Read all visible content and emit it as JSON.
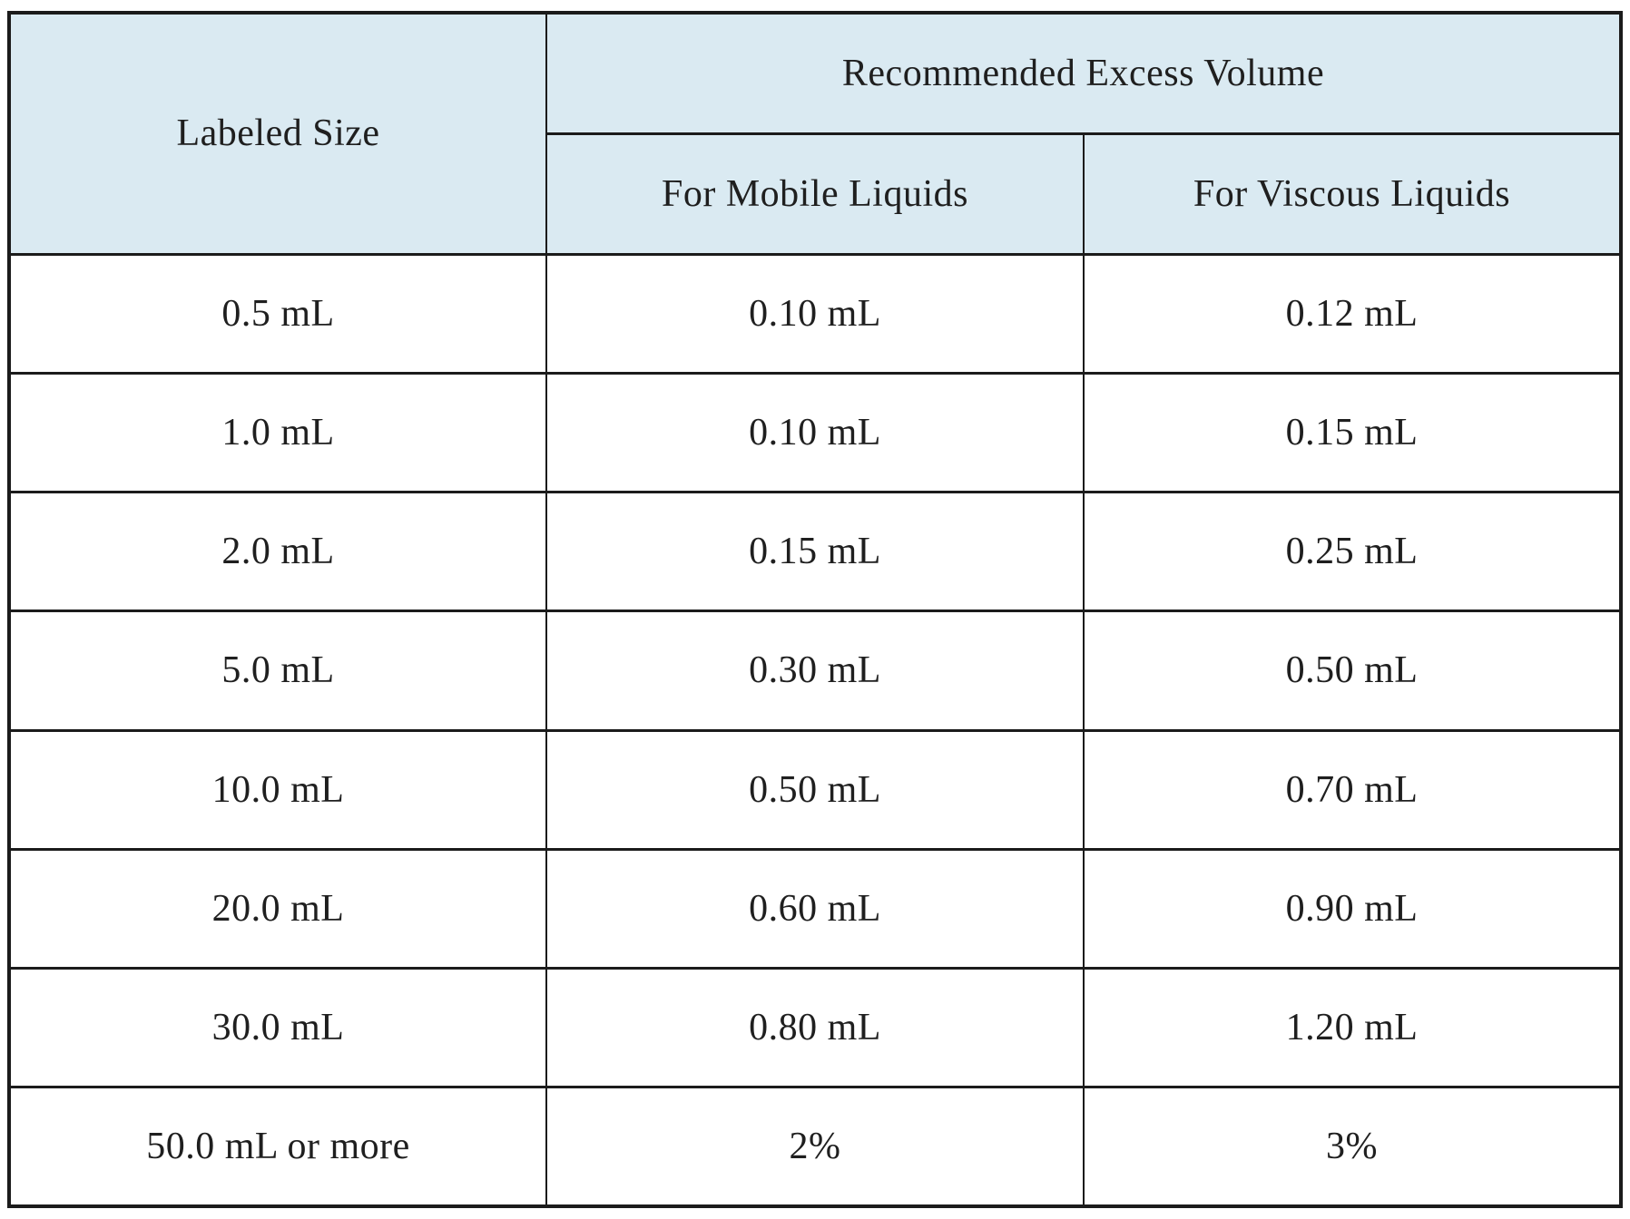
{
  "table": {
    "header": {
      "labeled_size": "Labeled Size",
      "group_title": "Recommended Excess Volume",
      "mobile_col": "For Mobile Liquids",
      "viscous_col": "For Viscous Liquids"
    },
    "rows": [
      {
        "size": "0.5 mL",
        "mobile": "0.10 mL",
        "viscous": "0.12 mL"
      },
      {
        "size": "1.0 mL",
        "mobile": "0.10 mL",
        "viscous": "0.15 mL"
      },
      {
        "size": "2.0 mL",
        "mobile": "0.15 mL",
        "viscous": "0.25 mL"
      },
      {
        "size": "5.0 mL",
        "mobile": "0.30 mL",
        "viscous": "0.50 mL"
      },
      {
        "size": "10.0 mL",
        "mobile": "0.50 mL",
        "viscous": "0.70 mL"
      },
      {
        "size": "20.0 mL",
        "mobile": "0.60 mL",
        "viscous": "0.90 mL"
      },
      {
        "size": "30.0 mL",
        "mobile": "0.80 mL",
        "viscous": "1.20 mL"
      },
      {
        "size": "50.0 mL or more",
        "mobile": "2%",
        "viscous": "3%"
      }
    ],
    "colors": {
      "header_bg": "#daeaf2",
      "border": "#1b1b1b",
      "text": "#1f1f1f"
    }
  },
  "chart_data": {
    "type": "table",
    "title": "",
    "columns": [
      "Labeled Size",
      "For Mobile Liquids",
      "For Viscous Liquids"
    ],
    "column_group": {
      "label": "Recommended Excess Volume",
      "spans": [
        "For Mobile Liquids",
        "For Viscous Liquids"
      ]
    },
    "rows": [
      [
        "0.5 mL",
        "0.10 mL",
        "0.12 mL"
      ],
      [
        "1.0 mL",
        "0.10 mL",
        "0.15 mL"
      ],
      [
        "2.0 mL",
        "0.15 mL",
        "0.25 mL"
      ],
      [
        "5.0 mL",
        "0.30 mL",
        "0.50 mL"
      ],
      [
        "10.0 mL",
        "0.50 mL",
        "0.70 mL"
      ],
      [
        "20.0 mL",
        "0.60 mL",
        "0.90 mL"
      ],
      [
        "30.0 mL",
        "0.80 mL",
        "1.20 mL"
      ],
      [
        "50.0 mL or more",
        "2%",
        "3%"
      ]
    ]
  }
}
